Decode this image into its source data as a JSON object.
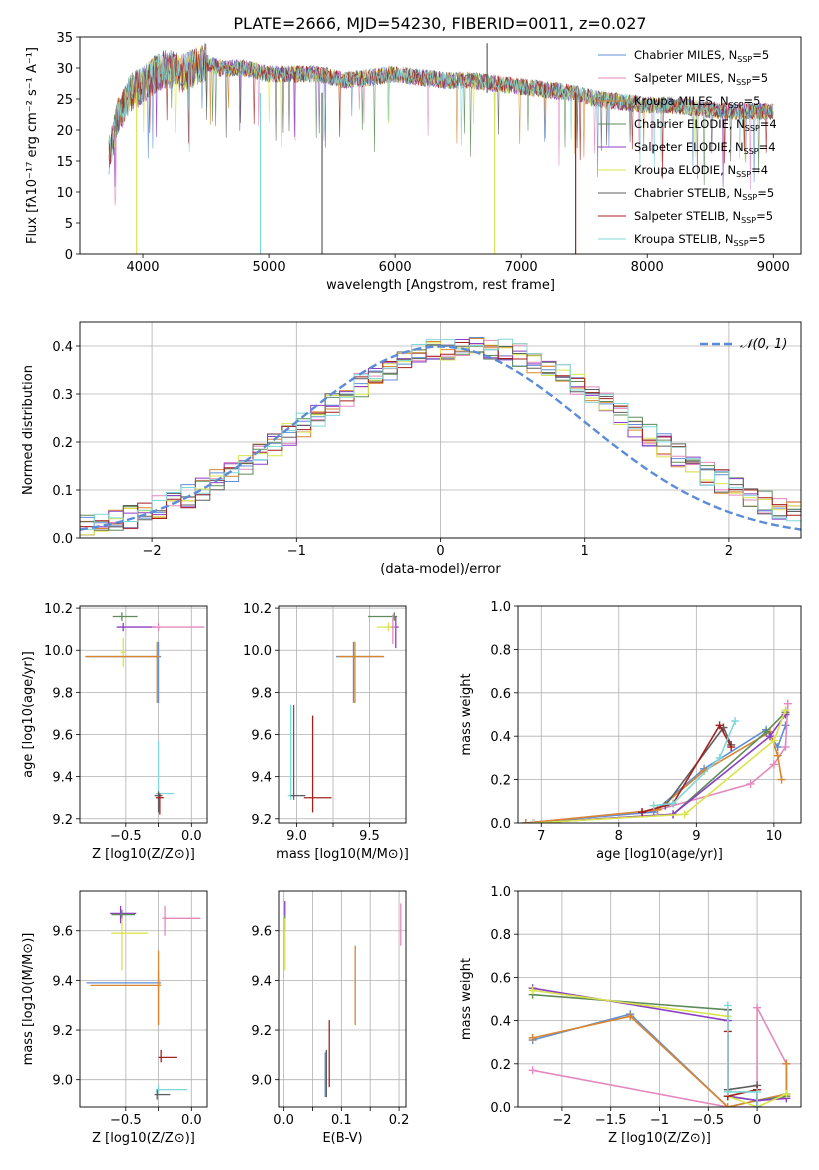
{
  "figure_title": "PLATE=2666, MJD=54230, FIBERID=0011, z=0.027",
  "series": [
    {
      "name": "Chabrier MILES",
      "nssp": "5",
      "color": "#5f8fd6"
    },
    {
      "name": "Salpeter MILES",
      "nssp": "5",
      "color": "#e389be"
    },
    {
      "name": "Kroupa MILES",
      "nssp": "5",
      "color": "#d9862f"
    },
    {
      "name": "Chabrier ELODIE",
      "nssp": "4",
      "color": "#5f8b5a"
    },
    {
      "name": "Salpeter ELODIE",
      "nssp": "4",
      "color": "#8b3fc4"
    },
    {
      "name": "Kroupa ELODIE",
      "nssp": "4",
      "color": "#d9e44c"
    },
    {
      "name": "Chabrier STELIB",
      "nssp": "5",
      "color": "#5f5f5f"
    },
    {
      "name": "Salpeter STELIB",
      "nssp": "5",
      "color": "#a51f1f"
    },
    {
      "name": "Kroupa STELIB",
      "nssp": "5",
      "color": "#7fd8d8"
    }
  ],
  "chart_data": [
    {
      "id": "spectrum",
      "type": "line",
      "xlabel": "wavelength [Angstrom, rest frame]",
      "ylabel": "Flux [fλ10⁻¹⁷ erg cm⁻² s⁻¹ A⁻¹]",
      "xlim": [
        3500,
        9220
      ],
      "ylim": [
        0,
        35
      ],
      "xticks": [
        4000,
        5000,
        6000,
        7000,
        8000,
        9000
      ],
      "yticks": [
        0,
        5,
        10,
        15,
        20,
        25,
        30,
        35
      ],
      "grid": false,
      "legend": "top-right",
      "envelope": {
        "x": [
          3730,
          3800,
          3900,
          4000,
          4100,
          4200,
          4300,
          4400,
          4500,
          4600,
          4800,
          5000,
          5200,
          5400,
          5600,
          5800,
          6000,
          6200,
          6400,
          6600,
          6800,
          7000,
          7200,
          7400,
          7600,
          7800,
          8000,
          8200,
          8400,
          8600,
          8800,
          9000
        ],
        "y": [
          16,
          22,
          26,
          27,
          29,
          30,
          29,
          30,
          31,
          30,
          30,
          29,
          29,
          29,
          28,
          28.5,
          29,
          28.5,
          28,
          28,
          27.5,
          27,
          26.5,
          26,
          25,
          24.5,
          24,
          24,
          23.5,
          23,
          23,
          23
        ]
      },
      "spikes": [
        {
          "x": 4932,
          "y": 0,
          "series": "Kroupa STELIB"
        },
        {
          "x": 5420,
          "y": 0,
          "series": "Chabrier STELIB"
        },
        {
          "x": 6790,
          "y": 0,
          "series": "Kroupa ELODIE"
        },
        {
          "x": 7432,
          "y": 0,
          "series": "Salpeter STELIB"
        },
        {
          "x": 3950,
          "y": 0,
          "series": "Kroupa ELODIE"
        },
        {
          "x": 6730,
          "y": 34,
          "series": "Chabrier STELIB"
        }
      ]
    },
    {
      "id": "residuals",
      "type": "histogram",
      "xlabel": "(data-model)/error",
      "ylabel": "Normed distribution",
      "xlim": [
        -2.5,
        2.5
      ],
      "ylim": [
        0,
        0.45
      ],
      "xticks": [
        -2,
        -1,
        0,
        1,
        2
      ],
      "yticks": [
        0.0,
        0.1,
        0.2,
        0.3,
        0.4
      ],
      "grid": true,
      "legend": "top-right",
      "normal_label": "𝒩(0, 1)",
      "bin_width": 0.1
    },
    {
      "id": "age-vs-Z",
      "type": "errorbar",
      "xlabel": "Z [log10(Z/Z⊙)]",
      "ylabel": "age  [log10(age/yr)]",
      "xlim": [
        -0.85,
        0.12
      ],
      "ylim": [
        9.18,
        10.21
      ],
      "xticks": [
        -0.5,
        -0.25,
        0.0
      ],
      "xticklabels": [
        "−0.5",
        "",
        "0.0"
      ],
      "yticks": [
        9.2,
        9.4,
        9.6,
        9.8,
        10.0,
        10.2
      ],
      "grid": true,
      "points": [
        {
          "x": -0.53,
          "y": 10.16,
          "xerr": [
            0.07,
            0.12
          ],
          "yerr": [
            0.02,
            0.02
          ],
          "series": "Chabrier ELODIE"
        },
        {
          "x": -0.52,
          "y": 10.11,
          "xerr": [
            0.05,
            0.25
          ],
          "yerr": [
            0.02,
            0.02
          ],
          "series": "Salpeter ELODIE"
        },
        {
          "x": -0.25,
          "y": 10.11,
          "xerr": [
            0.05,
            0.35
          ],
          "yerr": [
            0.02,
            0.02
          ],
          "series": "Salpeter MILES"
        },
        {
          "x": -0.52,
          "y": 9.99,
          "xerr": [
            0.02,
            0.02
          ],
          "yerr": [
            0.07,
            0.07
          ],
          "series": "Kroupa ELODIE"
        },
        {
          "x": -0.25,
          "y": 9.97,
          "xerr": [
            0.55,
            0.02
          ],
          "yerr": [
            0.22,
            0.07
          ],
          "series": "Chabrier MILES"
        },
        {
          "x": -0.26,
          "y": 9.97,
          "xerr": [
            0.55,
            0.02
          ],
          "yerr": [
            0.22,
            0.07
          ],
          "series": "Kroupa MILES"
        },
        {
          "x": -0.25,
          "y": 9.32,
          "xerr": [
            0.02,
            0.12
          ],
          "yerr": [
            0.02,
            0.25
          ],
          "series": "Kroupa STELIB"
        },
        {
          "x": -0.25,
          "y": 9.31,
          "xerr": [
            0.03,
            0.03
          ],
          "yerr": [
            0.08,
            0.02
          ],
          "series": "Chabrier STELIB"
        },
        {
          "x": -0.24,
          "y": 9.3,
          "xerr": [
            0.03,
            0.03
          ],
          "yerr": [
            0.08,
            0.02
          ],
          "series": "Salpeter STELIB"
        }
      ]
    },
    {
      "id": "age-vs-mass",
      "type": "errorbar",
      "xlabel": "mass [log10(M/M⊙)]",
      "ylabel": "",
      "xlim": [
        8.88,
        9.75
      ],
      "ylim": [
        9.18,
        10.21
      ],
      "xticks": [
        9.0,
        9.25,
        9.5
      ],
      "xticklabels": [
        "9.0",
        "",
        "9.5"
      ],
      "yticks": [
        9.2,
        9.4,
        9.6,
        9.8,
        10.0,
        10.2
      ],
      "grid": true,
      "points": [
        {
          "x": 9.67,
          "y": 10.16,
          "xerr": [
            0.18,
            0.02
          ],
          "yerr": [
            0.02,
            0.02
          ],
          "series": "Chabrier ELODIE"
        },
        {
          "x": 9.68,
          "y": 10.11,
          "xerr": [
            0.02,
            0.02
          ],
          "yerr": [
            0.1,
            0.05
          ],
          "series": "Salpeter ELODIE"
        },
        {
          "x": 9.66,
          "y": 10.11,
          "xerr": [
            0.02,
            0.02
          ],
          "yerr": [
            0.08,
            0.06
          ],
          "series": "Salpeter MILES"
        },
        {
          "x": 9.63,
          "y": 10.11,
          "xerr": [
            0.08,
            0.02
          ],
          "yerr": [
            0.02,
            0.02
          ],
          "series": "Kroupa ELODIE"
        },
        {
          "x": 9.39,
          "y": 9.97,
          "xerr": [
            0.12,
            0.2
          ],
          "yerr": [
            0.22,
            0.07
          ],
          "series": "Chabrier MILES"
        },
        {
          "x": 9.4,
          "y": 9.97,
          "xerr": [
            0.12,
            0.2
          ],
          "yerr": [
            0.22,
            0.07
          ],
          "series": "Kroupa MILES"
        },
        {
          "x": 8.96,
          "y": 9.31,
          "xerr": [
            0.02,
            0.1
          ],
          "yerr": [
            0.02,
            0.43
          ],
          "series": "Kroupa STELIB"
        },
        {
          "x": 8.98,
          "y": 9.31,
          "xerr": [
            0.02,
            0.08
          ],
          "yerr": [
            0.02,
            0.43
          ],
          "series": "Chabrier STELIB"
        },
        {
          "x": 9.11,
          "y": 9.3,
          "xerr": [
            0.06,
            0.13
          ],
          "yerr": [
            0.07,
            0.39
          ],
          "series": "Salpeter STELIB"
        }
      ]
    },
    {
      "id": "weight-vs-age",
      "type": "line",
      "xlabel": "age  [log10(age/yr)]",
      "ylabel": "mass weight",
      "xlim": [
        6.7,
        10.35
      ],
      "ylim": [
        0,
        1
      ],
      "xticks": [
        7,
        8,
        9,
        10
      ],
      "yticks": [
        0.0,
        0.2,
        0.4,
        0.6,
        0.8,
        1.0
      ],
      "grid": true,
      "series": [
        {
          "name": "Chabrier MILES",
          "x": [
            6.8,
            8.45,
            9.1,
            9.9,
            10.05,
            10.15
          ],
          "y": [
            0.0,
            0.05,
            0.25,
            0.43,
            0.35,
            0.45
          ]
        },
        {
          "name": "Salpeter MILES",
          "x": [
            6.8,
            8.5,
            9.7,
            10.0,
            10.15,
            10.18
          ],
          "y": [
            0.0,
            0.06,
            0.18,
            0.27,
            0.35,
            0.55
          ]
        },
        {
          "name": "Kroupa MILES",
          "x": [
            6.8,
            8.5,
            9.1,
            9.95,
            10.05,
            10.1
          ],
          "y": [
            0.0,
            0.06,
            0.24,
            0.42,
            0.31,
            0.2
          ]
        },
        {
          "name": "Chabrier ELODIE",
          "x": [
            6.9,
            8.7,
            9.9,
            10.15
          ],
          "y": [
            0.0,
            0.04,
            0.42,
            0.51
          ]
        },
        {
          "name": "Salpeter ELODIE",
          "x": [
            6.9,
            8.7,
            9.95,
            10.15
          ],
          "y": [
            0.0,
            0.04,
            0.4,
            0.5
          ]
        },
        {
          "name": "Kroupa ELODIE",
          "x": [
            6.9,
            8.85,
            10.0,
            10.15
          ],
          "y": [
            0.0,
            0.04,
            0.38,
            0.52
          ]
        },
        {
          "name": "Chabrier STELIB",
          "x": [
            8.3,
            8.6,
            9.35,
            9.45
          ],
          "y": [
            0.05,
            0.08,
            0.44,
            0.36
          ]
        },
        {
          "name": "Salpeter STELIB",
          "x": [
            8.3,
            8.7,
            9.3,
            9.45
          ],
          "y": [
            0.05,
            0.09,
            0.45,
            0.35
          ]
        },
        {
          "name": "Kroupa STELIB",
          "x": [
            8.45,
            8.7,
            9.3,
            9.5
          ],
          "y": [
            0.08,
            0.09,
            0.3,
            0.47
          ]
        }
      ]
    },
    {
      "id": "mass-vs-Z",
      "type": "errorbar",
      "xlabel": "Z [log10(Z/Z⊙)]",
      "ylabel": "mass [log10(M/M⊙)]",
      "xlim": [
        -0.85,
        0.12
      ],
      "ylim": [
        8.89,
        9.76
      ],
      "xticks": [
        -0.5,
        -0.25,
        0.0
      ],
      "xticklabels": [
        "−0.5",
        "",
        "0.0"
      ],
      "yticks": [
        9.0,
        9.2,
        9.4,
        9.6
      ],
      "grid": true,
      "points": [
        {
          "x": -0.54,
          "y": 9.67,
          "xerr": [
            0.08,
            0.12
          ],
          "yerr": [
            0.04,
            0.03
          ],
          "series": "Salpeter ELODIE"
        },
        {
          "x": -0.53,
          "y": 9.665,
          "xerr": [
            0.08,
            0.1
          ],
          "yerr": [
            0.02,
            0.02
          ],
          "series": "Chabrier ELODIE"
        },
        {
          "x": -0.53,
          "y": 9.59,
          "xerr": [
            0.08,
            0.2
          ],
          "yerr": [
            0.15,
            0.06
          ],
          "series": "Kroupa ELODIE"
        },
        {
          "x": -0.2,
          "y": 9.65,
          "xerr": [
            0.02,
            0.27
          ],
          "yerr": [
            0.07,
            0.05
          ],
          "series": "Salpeter MILES"
        },
        {
          "x": -0.25,
          "y": 9.39,
          "xerr": [
            0.55,
            0.02
          ],
          "yerr": [
            0.17,
            0.05
          ],
          "series": "Chabrier MILES"
        },
        {
          "x": -0.25,
          "y": 9.38,
          "xerr": [
            0.52,
            0.02
          ],
          "yerr": [
            0.16,
            0.14
          ],
          "series": "Kroupa MILES"
        },
        {
          "x": -0.23,
          "y": 9.09,
          "xerr": [
            0.02,
            0.12
          ],
          "yerr": [
            0.02,
            0.03
          ],
          "series": "Salpeter STELIB"
        },
        {
          "x": -0.25,
          "y": 8.96,
          "xerr": [
            0.02,
            0.22
          ],
          "yerr": [
            0.02,
            0.02
          ],
          "series": "Kroupa STELIB"
        },
        {
          "x": -0.26,
          "y": 8.94,
          "xerr": [
            0.02,
            0.1
          ],
          "yerr": [
            0.02,
            0.02
          ],
          "series": "Chabrier STELIB"
        }
      ]
    },
    {
      "id": "mass-vs-EBV",
      "type": "errorbar",
      "xlabel": "E(B-V)",
      "ylabel": "",
      "xlim": [
        -0.008,
        0.212
      ],
      "ylim": [
        8.89,
        9.76
      ],
      "xticks": [
        0.0,
        0.05,
        0.1,
        0.15,
        0.2
      ],
      "xticklabels": [
        "0.0",
        "",
        "0.1",
        "",
        "0.2"
      ],
      "yticks": [
        9.0,
        9.2,
        9.4,
        9.6
      ],
      "grid": true,
      "points": [
        {
          "x": 0.002,
          "y": 9.69,
          "xerr": [
            0,
            0
          ],
          "yerr": [
            0.03,
            0.03
          ],
          "series": "Salpeter ELODIE"
        },
        {
          "x": 0.002,
          "y": 9.63,
          "xerr": [
            0,
            0
          ],
          "yerr": [
            0.03,
            0.03
          ],
          "series": "Chabrier ELODIE"
        },
        {
          "x": 0.002,
          "y": 9.59,
          "xerr": [
            0,
            0
          ],
          "yerr": [
            0.15,
            0.06
          ],
          "series": "Kroupa ELODIE"
        },
        {
          "x": 0.203,
          "y": 9.63,
          "xerr": [
            0,
            0
          ],
          "yerr": [
            0.09,
            0.08
          ],
          "series": "Salpeter MILES"
        },
        {
          "x": 0.124,
          "y": 9.38,
          "xerr": [
            0,
            0
          ],
          "yerr": [
            0.16,
            0.16
          ],
          "series": "Kroupa MILES"
        },
        {
          "x": 0.072,
          "y": 9.02,
          "xerr": [
            0,
            0
          ],
          "yerr": [
            0.09,
            0.09
          ],
          "series": "Chabrier MILES"
        },
        {
          "x": 0.079,
          "y": 9.1,
          "xerr": [
            0,
            0
          ],
          "yerr": [
            0.13,
            0.14
          ],
          "series": "Salpeter STELIB"
        },
        {
          "x": 0.074,
          "y": 9.03,
          "xerr": [
            0,
            0
          ],
          "yerr": [
            0.1,
            0.09
          ],
          "series": "Chabrier STELIB"
        }
      ]
    },
    {
      "id": "weight-vs-Z",
      "type": "line",
      "xlabel": "Z [log10(Z/Z⊙)]",
      "ylabel": "mass weight",
      "xlim": [
        -2.45,
        0.45
      ],
      "ylim": [
        0,
        1
      ],
      "xticks": [
        -2.0,
        -1.5,
        -1.0,
        -0.5,
        0.0
      ],
      "yticks": [
        0.0,
        0.2,
        0.4,
        0.6,
        0.8,
        1.0
      ],
      "grid": true,
      "series": [
        {
          "name": "Chabrier MILES",
          "x": [
            -2.3,
            -1.3,
            -0.3,
            0.3,
            0.3
          ],
          "y": [
            0.31,
            0.43,
            0.0,
            0.06,
            0.2
          ]
        },
        {
          "name": "Salpeter MILES",
          "x": [
            -2.3,
            -0.3,
            0.0,
            0.0,
            0.3
          ],
          "y": [
            0.17,
            0.0,
            0.0,
            0.46,
            0.2
          ]
        },
        {
          "name": "Kroupa MILES",
          "x": [
            -2.3,
            -1.3,
            -0.3,
            0.3,
            0.3
          ],
          "y": [
            0.32,
            0.42,
            0.0,
            0.06,
            0.2
          ]
        },
        {
          "name": "Chabrier ELODIE",
          "x": [
            -2.3,
            -0.3,
            -0.3,
            0.0,
            0.3
          ],
          "y": [
            0.52,
            0.45,
            0.05,
            0.03,
            0.05
          ]
        },
        {
          "name": "Salpeter ELODIE",
          "x": [
            -2.3,
            -0.3,
            -0.3,
            0.0,
            0.3
          ],
          "y": [
            0.55,
            0.4,
            0.05,
            0.03,
            0.04
          ]
        },
        {
          "name": "Kroupa ELODIE",
          "x": [
            -2.3,
            -0.3,
            -0.3,
            0.0,
            0.3
          ],
          "y": [
            0.54,
            0.42,
            0.05,
            0.0,
            0.06
          ]
        },
        {
          "name": "Chabrier STELIB",
          "x": [
            -0.3,
            -0.3,
            0.0,
            0.0
          ],
          "y": [
            0.45,
            0.08,
            0.1,
            0.0
          ]
        },
        {
          "name": "Salpeter STELIB",
          "x": [
            -0.3,
            -0.3,
            0.0,
            0.0
          ],
          "y": [
            0.35,
            0.05,
            0.08,
            0.0
          ]
        },
        {
          "name": "Kroupa STELIB",
          "x": [
            -0.3,
            -0.3,
            0.0,
            0.0
          ],
          "y": [
            0.47,
            0.07,
            0.07,
            0.0
          ]
        }
      ]
    }
  ]
}
